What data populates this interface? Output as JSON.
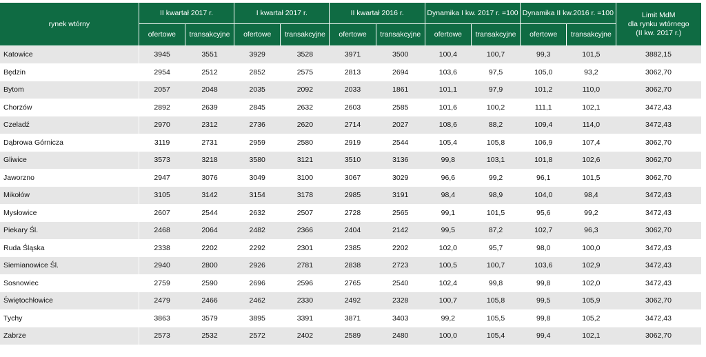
{
  "header": {
    "row_label": "rynek wtórny",
    "groups": [
      "II kwartał 2017 r.",
      "I kwartał 2017 r.",
      "II kwartał 2016 r.",
      "Dynamika I kw. 2017 r. =100",
      "Dynamika II kw.2016 r. =100"
    ],
    "sub": [
      "ofertowe",
      "transakcyjne"
    ],
    "limit_line1": "Limit MdM",
    "limit_line2": "dla rynku wtórnego",
    "limit_line3": "(II kw. 2017 r.)"
  },
  "rows": [
    {
      "name": "Katowice",
      "v": [
        "3945",
        "3551",
        "3929",
        "3528",
        "3971",
        "3500",
        "100,4",
        "100,7",
        "99,3",
        "101,5",
        "3882,15"
      ]
    },
    {
      "name": "Będzin",
      "v": [
        "2954",
        "2512",
        "2852",
        "2575",
        "2813",
        "2694",
        "103,6",
        "97,5",
        "105,0",
        "93,2",
        "3062,70"
      ]
    },
    {
      "name": "Bytom",
      "v": [
        "2057",
        "2048",
        "2035",
        "2092",
        "2033",
        "1861",
        "101,1",
        "97,9",
        "101,2",
        "110,0",
        "3062,70"
      ]
    },
    {
      "name": "Chorzów",
      "v": [
        "2892",
        "2639",
        "2845",
        "2632",
        "2603",
        "2585",
        "101,6",
        "100,2",
        "111,1",
        "102,1",
        "3472,43"
      ]
    },
    {
      "name": "Czeladź",
      "v": [
        "2970",
        "2312",
        "2736",
        "2620",
        "2714",
        "2027",
        "108,6",
        "88,2",
        "109,4",
        "114,0",
        "3472,43"
      ]
    },
    {
      "name": "Dąbrowa Górnicza",
      "v": [
        "3119",
        "2731",
        "2959",
        "2580",
        "2919",
        "2544",
        "105,4",
        "105,8",
        "106,9",
        "107,4",
        "3062,70"
      ]
    },
    {
      "name": "Gliwice",
      "v": [
        "3573",
        "3218",
        "3580",
        "3121",
        "3510",
        "3136",
        "99,8",
        "103,1",
        "101,8",
        "102,6",
        "3062,70"
      ]
    },
    {
      "name": "Jaworzno",
      "v": [
        "2947",
        "3076",
        "3049",
        "3100",
        "3067",
        "3029",
        "96,6",
        "99,2",
        "96,1",
        "101,5",
        "3062,70"
      ]
    },
    {
      "name": "Mikołów",
      "v": [
        "3105",
        "3142",
        "3154",
        "3178",
        "2985",
        "3191",
        "98,4",
        "98,9",
        "104,0",
        "98,4",
        "3472,43"
      ]
    },
    {
      "name": "Mysłowice",
      "v": [
        "2607",
        "2544",
        "2632",
        "2507",
        "2728",
        "2565",
        "99,1",
        "101,5",
        "95,6",
        "99,2",
        "3472,43"
      ]
    },
    {
      "name": "Piekary Śl.",
      "v": [
        "2468",
        "2064",
        "2482",
        "2366",
        "2404",
        "2142",
        "99,5",
        "87,2",
        "102,7",
        "96,3",
        "3062,70"
      ]
    },
    {
      "name": "Ruda Śląska",
      "v": [
        "2338",
        "2202",
        "2292",
        "2301",
        "2385",
        "2202",
        "102,0",
        "95,7",
        "98,0",
        "100,0",
        "3472,43"
      ]
    },
    {
      "name": "Siemianowice Śl.",
      "v": [
        "2940",
        "2800",
        "2926",
        "2781",
        "2838",
        "2723",
        "100,5",
        "100,7",
        "103,6",
        "102,9",
        "3472,43"
      ]
    },
    {
      "name": "Sosnowiec",
      "v": [
        "2759",
        "2590",
        "2696",
        "2596",
        "2765",
        "2540",
        "102,4",
        "99,8",
        "99,8",
        "102,0",
        "3472,43"
      ]
    },
    {
      "name": "Świętochłowice",
      "v": [
        "2479",
        "2466",
        "2462",
        "2330",
        "2492",
        "2328",
        "100,7",
        "105,8",
        "99,5",
        "105,9",
        "3062,70"
      ]
    },
    {
      "name": "Tychy",
      "v": [
        "3863",
        "3579",
        "3895",
        "3391",
        "3871",
        "3403",
        "99,2",
        "105,5",
        "99,8",
        "105,2",
        "3472,43"
      ]
    },
    {
      "name": "Zabrze",
      "v": [
        "2573",
        "2532",
        "2572",
        "2402",
        "2589",
        "2480",
        "100,0",
        "105,4",
        "99,4",
        "102,1",
        "3062,70"
      ]
    }
  ]
}
